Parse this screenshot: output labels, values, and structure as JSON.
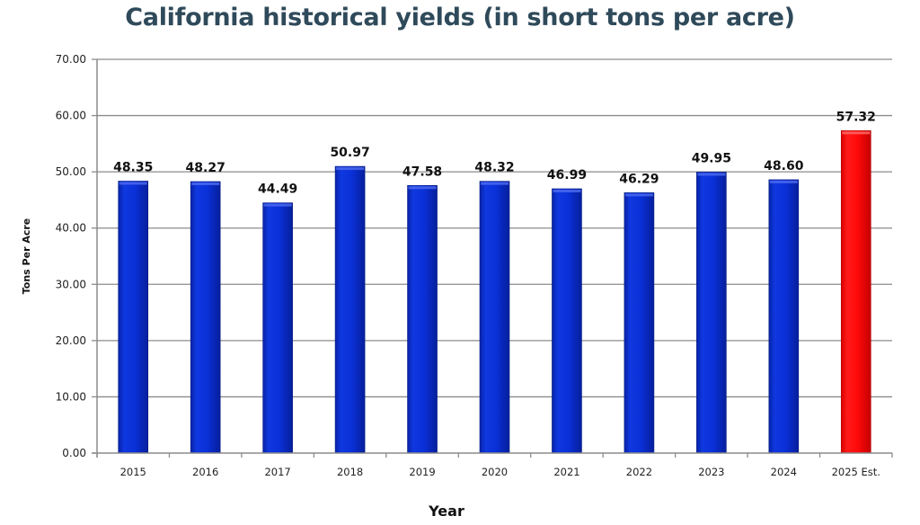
{
  "chart_data": {
    "type": "bar",
    "title": "California historical yields (in short tons per acre)",
    "xlabel": "Year",
    "ylabel": "Tons Per Acre",
    "categories": [
      "2015",
      "2016",
      "2017",
      "2018",
      "2019",
      "2020",
      "2021",
      "2022",
      "2023",
      "2024",
      "2025 Est."
    ],
    "values": [
      48.35,
      48.27,
      44.49,
      50.97,
      47.58,
      48.32,
      46.99,
      46.29,
      49.95,
      48.6,
      57.32
    ],
    "value_labels": [
      "48.35",
      "48.27",
      "44.49",
      "50.97",
      "47.58",
      "48.32",
      "46.99",
      "46.29",
      "49.95",
      "48.60",
      "57.32"
    ],
    "ylim": [
      0,
      70
    ],
    "yticks": [
      0,
      10,
      20,
      30,
      40,
      50,
      60,
      70
    ],
    "ytick_labels": [
      "0.00",
      "10.00",
      "20.00",
      "30.00",
      "40.00",
      "50.00",
      "60.00",
      "70.00"
    ],
    "grid": true,
    "legend": "none",
    "bar_colors": [
      "#0a2fd6",
      "#0a2fd6",
      "#0a2fd6",
      "#0a2fd6",
      "#0a2fd6",
      "#0a2fd6",
      "#0a2fd6",
      "#0a2fd6",
      "#0a2fd6",
      "#0a2fd6",
      "#ff0a0a"
    ],
    "colors": {
      "actual": "#0a2fd6",
      "estimate": "#ff0a0a",
      "title": "#2f4a5a",
      "grid": "#8c8c8c"
    }
  }
}
